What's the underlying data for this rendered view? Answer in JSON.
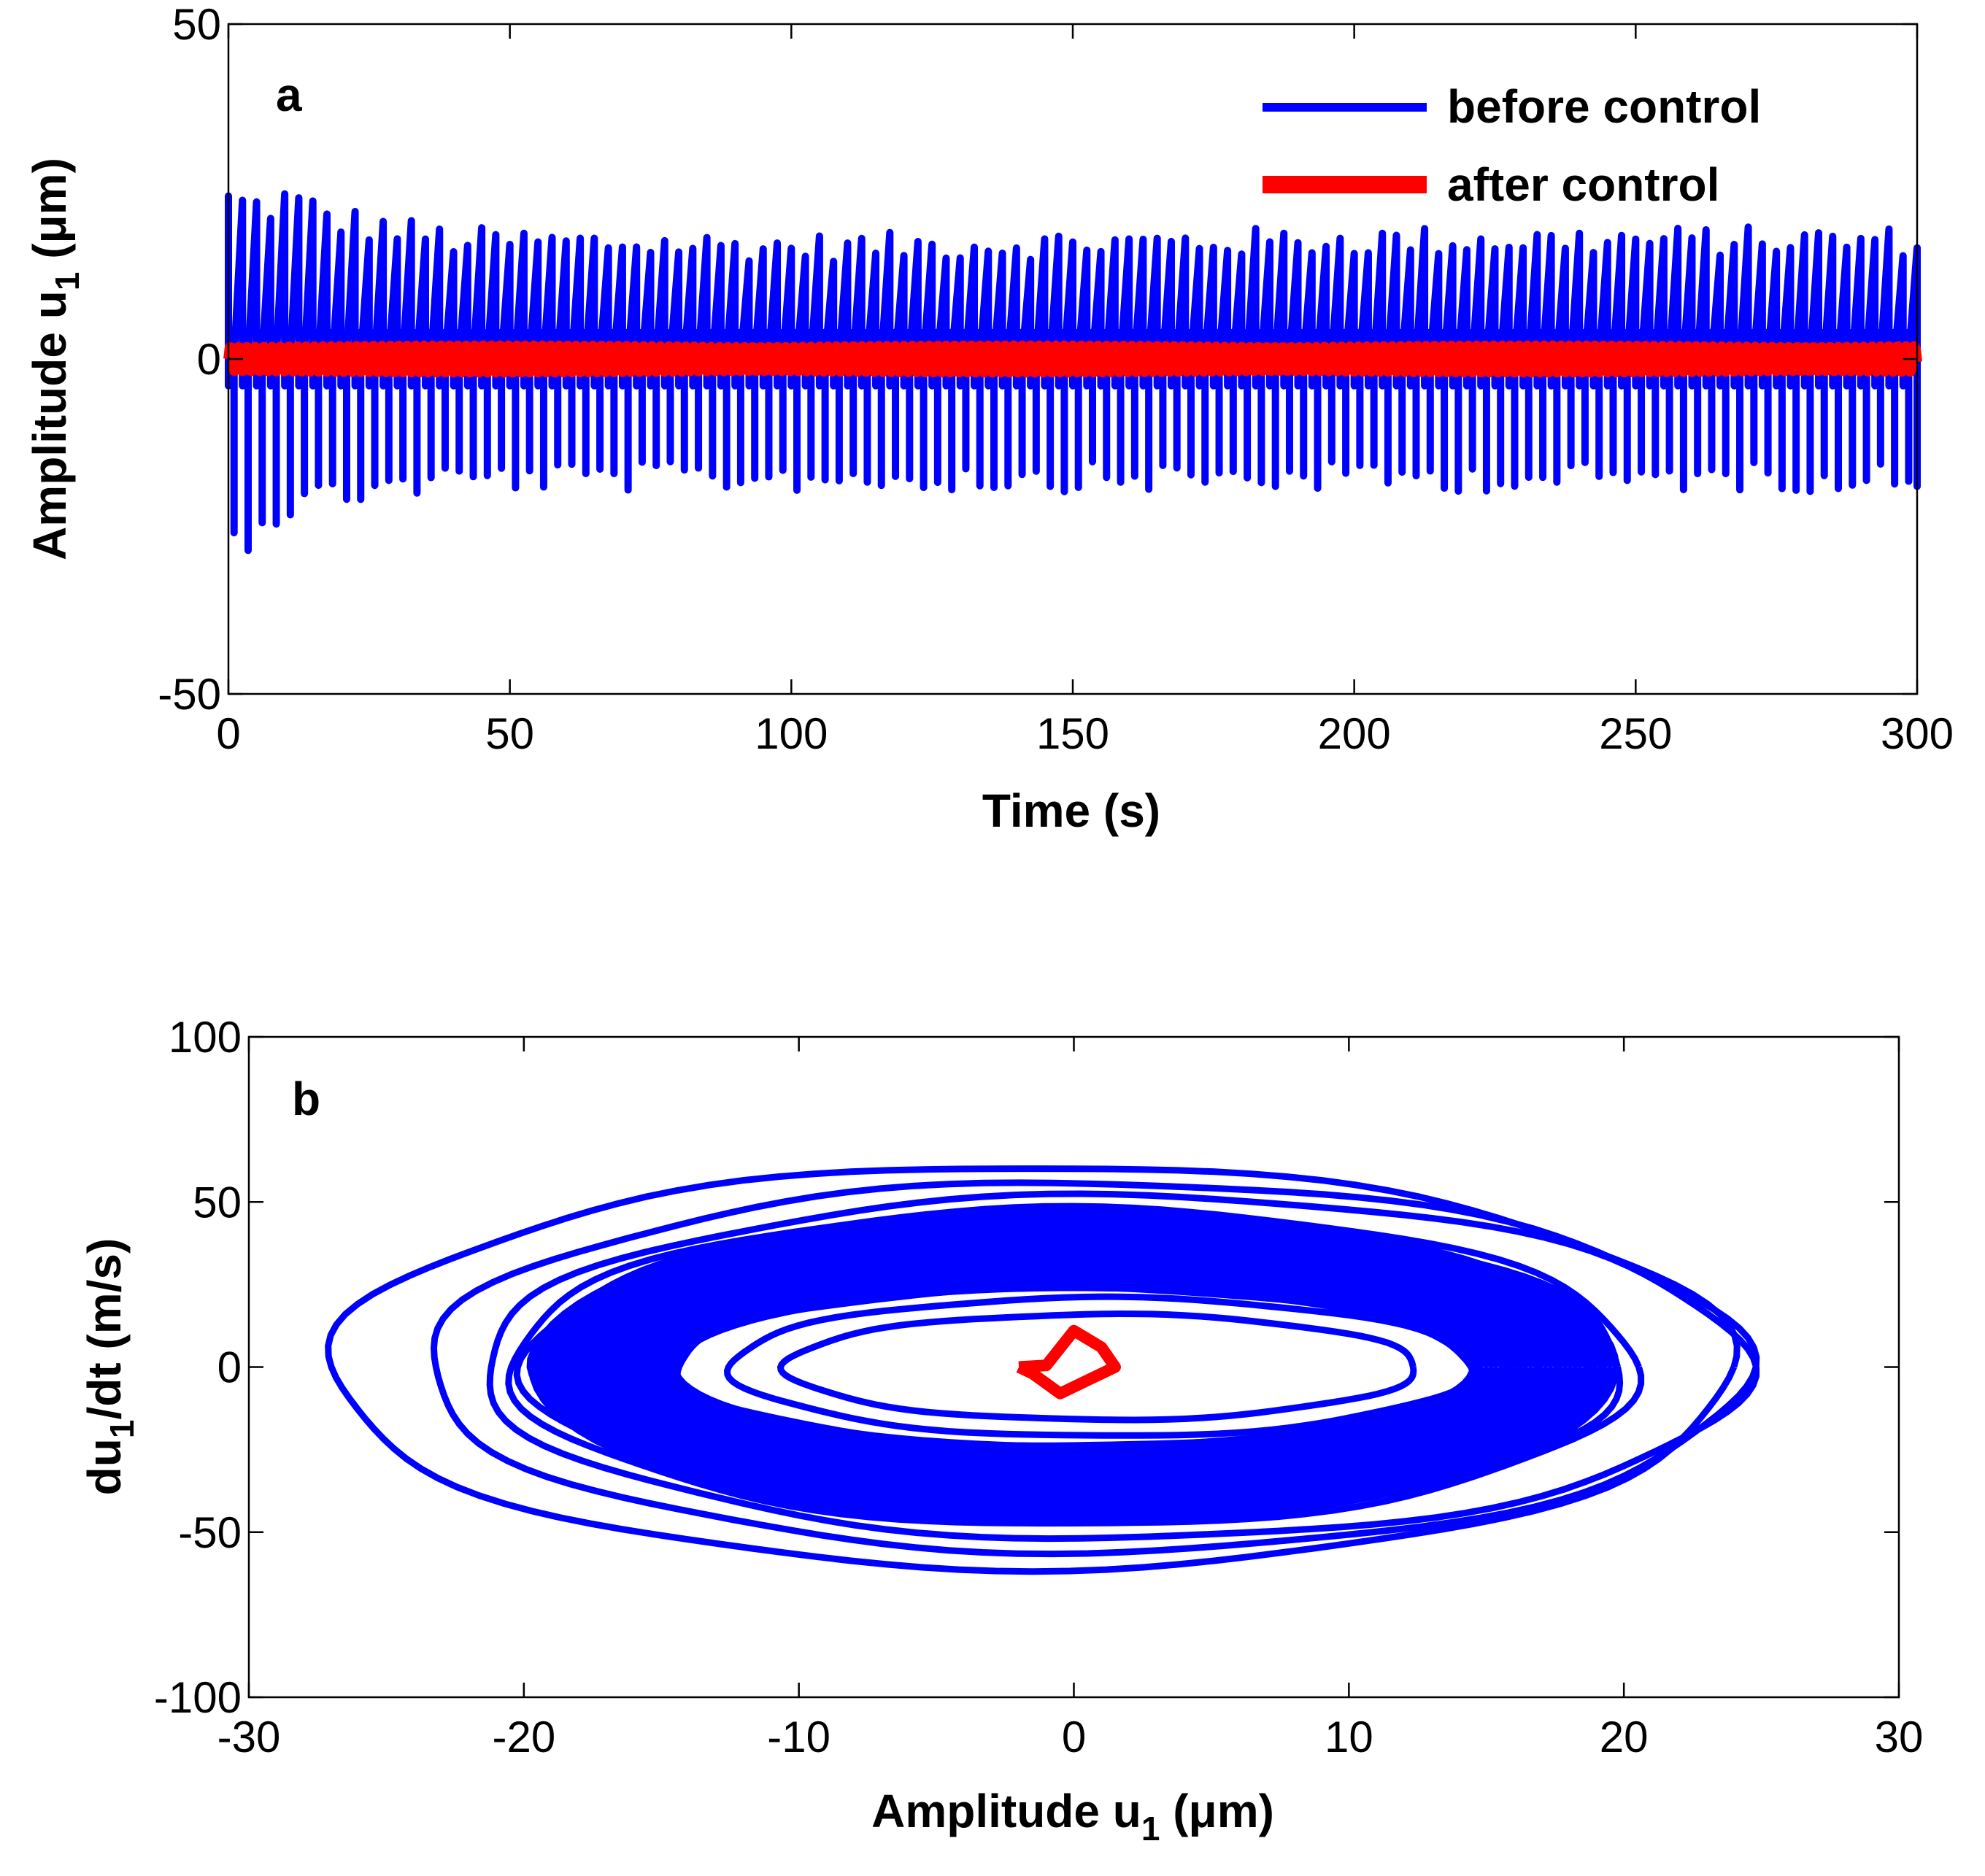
{
  "chart_data": [
    {
      "type": "line",
      "panel_label": "a",
      "xlabel": "Time (s)",
      "ylabel": "Amplitude u",
      "ylabel_sub": "1",
      "ylabel_unit": " (μm)",
      "xlim": [
        0,
        300
      ],
      "ylim": [
        -50,
        50
      ],
      "xticks": [
        0,
        50,
        100,
        150,
        200,
        250,
        300
      ],
      "xtick_labels": [
        "0",
        "50",
        "100",
        "150",
        "200",
        "250",
        "300"
      ],
      "yticks": [
        -50,
        0,
        50
      ],
      "ytick_labels": [
        "-50",
        "0",
        "50"
      ],
      "legend": {
        "position": "top-right",
        "entries": [
          "before control",
          "after control"
        ]
      },
      "series": [
        {
          "name": "before control",
          "color": "#0000ff",
          "description": "dense oscillation, spikes between ~+15..+25 and ~-15..-28, decaying slightly over time",
          "spike_period_s": 2.5,
          "peak_envelope": {
            "t": [
              0,
              5,
              10,
              20,
              40,
              100,
              200,
              300
            ],
            "max": [
              24,
              23,
              24,
              21,
              18,
              17,
              18,
              18
            ],
            "min": [
              -28,
              -24,
              -22,
              -20,
              -18,
              -18,
              -18,
              -18
            ]
          }
        },
        {
          "name": "after control",
          "color": "#ff0000",
          "description": "small oscillation near zero, amplitude ~ ±2",
          "amplitude": 2
        }
      ]
    },
    {
      "type": "line",
      "panel_label": "b",
      "xlabel": "Amplitude u",
      "xlabel_sub": "1",
      "xlabel_unit": " (μm)",
      "ylabel": "du",
      "ylabel_sub": "1",
      "ylabel_unit": "/dt (m/s)",
      "xlim": [
        -30,
        30
      ],
      "ylim": [
        -100,
        100
      ],
      "xticks": [
        -30,
        -20,
        -10,
        0,
        10,
        20,
        30
      ],
      "xtick_labels": [
        "-30",
        "-20",
        "-10",
        "0",
        "10",
        "20",
        "30"
      ],
      "yticks": [
        -100,
        -50,
        0,
        50,
        100
      ],
      "ytick_labels": [
        "-100",
        "-50",
        "0",
        "50",
        "100"
      ],
      "series": [
        {
          "name": "before control",
          "color": "#0000ff",
          "description": "phase portrait: nested ellipses (limit cycles)",
          "ellipses": [
            {
              "cx": -1.5,
              "rx": 25.5,
              "ry": 61
            },
            {
              "cx": 0.5,
              "rx": 24,
              "ry": 56
            },
            {
              "cx": 1.5,
              "rx": 23,
              "ry": 52
            },
            {
              "cx": 0.0,
              "rx": 20.5,
              "ry": 48
            },
            {
              "cx": 0.0,
              "rx": 20.0,
              "ry": 46
            },
            {
              "cx": 0.0,
              "rx": 19.5,
              "ry": 44
            },
            {
              "cx": 0.0,
              "rx": 19.0,
              "ry": 42
            },
            {
              "cx": 0.0,
              "rx": 18.5,
              "ry": 40
            },
            {
              "cx": 0.0,
              "rx": 18.0,
              "ry": 38
            },
            {
              "cx": 0.0,
              "rx": 17.5,
              "ry": 36
            },
            {
              "cx": 0.0,
              "rx": 17.0,
              "ry": 34
            },
            {
              "cx": 0.0,
              "rx": 16.5,
              "ry": 32
            },
            {
              "cx": 0.0,
              "rx": 16.0,
              "ry": 30
            },
            {
              "cx": 0.0,
              "rx": 15.5,
              "ry": 28
            },
            {
              "cx": 0.0,
              "rx": 15.0,
              "ry": 26
            },
            {
              "cx": 0.0,
              "rx": 14.5,
              "ry": 24
            },
            {
              "cx": 1.0,
              "rx": 13.5,
              "ry": 21
            },
            {
              "cx": 1.0,
              "rx": 11.5,
              "ry": 16
            }
          ]
        },
        {
          "name": "after control",
          "color": "#ff0000",
          "description": "small loop near origin",
          "points": [
            [
              -2,
              0
            ],
            [
              -1,
              0.5
            ],
            [
              0,
              11
            ],
            [
              1,
              6
            ],
            [
              1.5,
              0
            ],
            [
              0.5,
              -4
            ],
            [
              -0.5,
              -8
            ],
            [
              -1.5,
              -2
            ],
            [
              -2,
              0
            ]
          ]
        }
      ]
    }
  ]
}
